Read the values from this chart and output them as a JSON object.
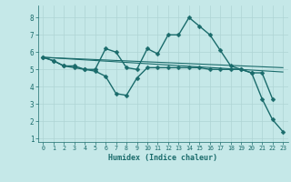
{
  "xlabel": "Humidex (Indice chaleur)",
  "background_color": "#c5e8e8",
  "grid_color": "#afd4d4",
  "line_color": "#1a6b6b",
  "xlim": [
    -0.5,
    23.5
  ],
  "ylim": [
    0.8,
    8.7
  ],
  "yticks": [
    1,
    2,
    3,
    4,
    5,
    6,
    7,
    8
  ],
  "xticks": [
    0,
    1,
    2,
    3,
    4,
    5,
    6,
    7,
    8,
    9,
    10,
    11,
    12,
    13,
    14,
    15,
    16,
    17,
    18,
    19,
    20,
    21,
    22,
    23
  ],
  "series": [
    {
      "x": [
        0,
        1,
        2,
        3,
        4,
        5,
        6,
        7,
        8,
        9,
        10,
        11,
        12,
        13,
        14,
        15,
        16,
        17,
        18,
        19,
        20,
        21,
        22
      ],
      "y": [
        5.7,
        5.5,
        5.2,
        5.2,
        5.0,
        5.0,
        6.2,
        6.0,
        5.1,
        5.0,
        6.2,
        5.9,
        7.0,
        7.0,
        8.0,
        7.5,
        7.0,
        6.1,
        5.2,
        5.0,
        4.8,
        4.8,
        3.3
      ],
      "marker": "D",
      "markersize": 2.5,
      "linewidth": 1.0
    },
    {
      "x": [
        0,
        1,
        2,
        3,
        4,
        5,
        6,
        7,
        8,
        9,
        10,
        11,
        12,
        13,
        14,
        15,
        16,
        17,
        18,
        19,
        20,
        21,
        22,
        23
      ],
      "y": [
        5.7,
        5.5,
        5.2,
        5.1,
        5.0,
        4.9,
        4.6,
        3.6,
        3.5,
        4.5,
        5.1,
        5.1,
        5.1,
        5.1,
        5.1,
        5.1,
        5.0,
        5.0,
        5.0,
        5.0,
        4.8,
        3.3,
        2.1,
        1.4
      ],
      "marker": "D",
      "markersize": 2.5,
      "linewidth": 1.0
    },
    {
      "x": [
        0,
        23
      ],
      "y": [
        5.7,
        5.1
      ],
      "marker": null,
      "markersize": 0,
      "linewidth": 0.8
    },
    {
      "x": [
        0,
        23
      ],
      "y": [
        5.7,
        4.85
      ],
      "marker": null,
      "markersize": 0,
      "linewidth": 0.8
    }
  ]
}
